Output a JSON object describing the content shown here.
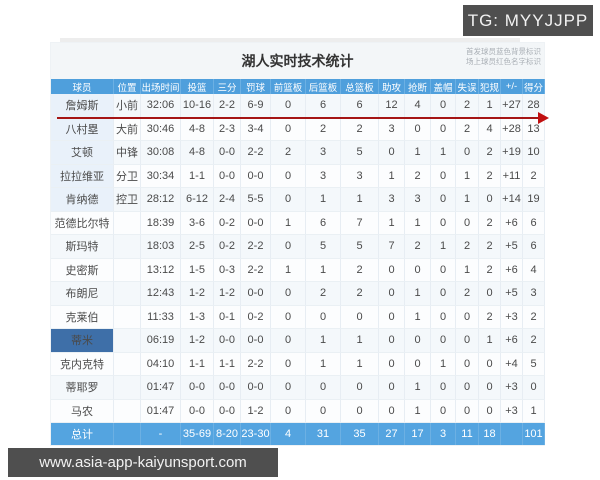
{
  "overlays": {
    "tg_badge": "TG: MYYJJPP",
    "url_badge": "www.asia-app-kaiyunsport.com"
  },
  "table": {
    "title": "湖人实时技术统计",
    "legend_line1": "首发球员蓝色背景标识",
    "legend_line2": "场上球员红色名字标识",
    "columns": [
      "球员",
      "位置",
      "出场时间",
      "投篮",
      "三分",
      "罚球",
      "前篮板",
      "后篮板",
      "总篮板",
      "助攻",
      "抢断",
      "盖帽",
      "失误",
      "犯规",
      "+/-",
      "得分"
    ],
    "rows": [
      {
        "name": "詹姆斯",
        "name_style": "starter",
        "cells": [
          "小前",
          "32:06",
          "10-16",
          "2-2",
          "6-9",
          "0",
          "6",
          "6",
          "12",
          "4",
          "0",
          "2",
          "1",
          "+27",
          "28"
        ]
      },
      {
        "name": "八村塁",
        "name_style": "starter",
        "cells": [
          "大前",
          "30:46",
          "4-8",
          "2-3",
          "3-4",
          "0",
          "2",
          "2",
          "3",
          "0",
          "0",
          "2",
          "4",
          "+28",
          "13"
        ]
      },
      {
        "name": "艾顿",
        "name_style": "starter",
        "cells": [
          "中锋",
          "30:08",
          "4-8",
          "0-0",
          "2-2",
          "2",
          "3",
          "5",
          "0",
          "1",
          "1",
          "0",
          "2",
          "+19",
          "10"
        ]
      },
      {
        "name": "拉拉维亚",
        "name_style": "starter",
        "cells": [
          "分卫",
          "30:34",
          "1-1",
          "0-0",
          "0-0",
          "0",
          "3",
          "3",
          "1",
          "2",
          "0",
          "1",
          "2",
          "+11",
          "2"
        ]
      },
      {
        "name": "肯纳德",
        "name_style": "starter",
        "cells": [
          "控卫",
          "28:12",
          "6-12",
          "2-4",
          "5-5",
          "0",
          "1",
          "1",
          "3",
          "3",
          "0",
          "1",
          "0",
          "+14",
          "19"
        ]
      },
      {
        "name": "范德比尔特",
        "name_style": "normal",
        "cells": [
          "",
          "18:39",
          "3-6",
          "0-2",
          "0-0",
          "1",
          "6",
          "7",
          "1",
          "1",
          "0",
          "0",
          "2",
          "+6",
          "6"
        ]
      },
      {
        "name": "斯玛特",
        "name_style": "normal",
        "cells": [
          "",
          "18:03",
          "2-5",
          "0-2",
          "2-2",
          "0",
          "5",
          "5",
          "7",
          "2",
          "1",
          "2",
          "2",
          "+5",
          "6"
        ]
      },
      {
        "name": "史密斯",
        "name_style": "red",
        "cells": [
          "",
          "13:12",
          "1-5",
          "0-3",
          "2-2",
          "1",
          "1",
          "2",
          "0",
          "0",
          "0",
          "1",
          "2",
          "+6",
          "4"
        ]
      },
      {
        "name": "布朗尼",
        "name_style": "normal",
        "cells": [
          "",
          "12:43",
          "1-2",
          "1-2",
          "0-0",
          "0",
          "2",
          "2",
          "0",
          "1",
          "0",
          "2",
          "0",
          "+5",
          "3"
        ]
      },
      {
        "name": "克莱伯",
        "name_style": "normal",
        "cells": [
          "",
          "11:33",
          "1-3",
          "0-1",
          "0-2",
          "0",
          "0",
          "0",
          "0",
          "1",
          "0",
          "0",
          "2",
          "+3",
          "2"
        ]
      },
      {
        "name": "蒂米",
        "name_style": "selected",
        "cells": [
          "",
          "06:19",
          "1-2",
          "0-0",
          "0-0",
          "0",
          "1",
          "1",
          "0",
          "0",
          "0",
          "0",
          "1",
          "+6",
          "2"
        ]
      },
      {
        "name": "克内克特",
        "name_style": "red",
        "cells": [
          "",
          "04:10",
          "1-1",
          "1-1",
          "2-2",
          "0",
          "1",
          "1",
          "0",
          "0",
          "1",
          "0",
          "0",
          "+4",
          "5"
        ]
      },
      {
        "name": "蒂耶罗",
        "name_style": "red",
        "cells": [
          "",
          "01:47",
          "0-0",
          "0-0",
          "0-0",
          "0",
          "0",
          "0",
          "0",
          "1",
          "0",
          "0",
          "0",
          "+3",
          "0"
        ]
      },
      {
        "name": "马农",
        "name_style": "red",
        "cells": [
          "",
          "01:47",
          "0-0",
          "0-0",
          "1-2",
          "0",
          "0",
          "0",
          "0",
          "1",
          "0",
          "0",
          "0",
          "+3",
          "1"
        ]
      }
    ],
    "total_row": {
      "label": "总计",
      "cells": [
        "",
        "-",
        "35-69",
        "8-20",
        "23-30",
        "4",
        "31",
        "35",
        "27",
        "17",
        "3",
        "11",
        "18",
        "",
        "101"
      ]
    }
  },
  "colors": {
    "header_blue": "#4f9fdc",
    "total_blue": "#54a4e0",
    "red_name": "#b05b60",
    "selected_name_bg": "#3e6fa8",
    "arrow_red": "#b01212",
    "badge_gray": "#4f4f4f",
    "starter_name_bg": "#e9f1fa"
  }
}
